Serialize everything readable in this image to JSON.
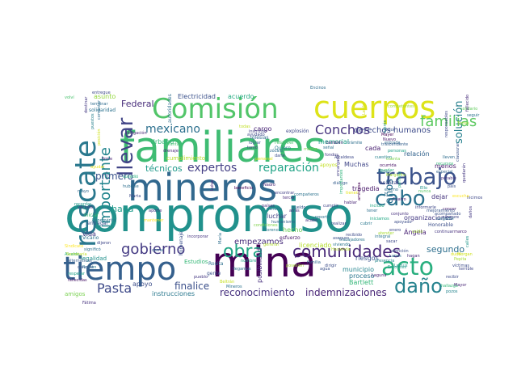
{
  "words": [
    {
      "text": "compromiso",
      "color": "#21918c"
    },
    {
      "text": "familiares",
      "color": "#3fbc73"
    },
    {
      "text": "mineros",
      "color": "#31688e"
    },
    {
      "text": "mina",
      "color": "#440154"
    },
    {
      "text": "tiempo",
      "color": "#35608d"
    },
    {
      "text": "cuerpos",
      "color": "#dde318"
    },
    {
      "text": "rescate",
      "color": "#2a788e"
    },
    {
      "text": "Comisión",
      "color": "#52c569"
    },
    {
      "text": "trabajo",
      "color": "#3b528b"
    },
    {
      "text": "acto",
      "color": "#29af7f"
    },
    {
      "text": "cabo",
      "color": "#2c728e"
    },
    {
      "text": "daño",
      "color": "#26828e"
    },
    {
      "text": "llevar",
      "color": "#414487"
    },
    {
      "text": "obra",
      "color": "#21a585"
    },
    {
      "text": "comunidades",
      "color": "#482878"
    },
    {
      "text": "gobierno",
      "color": "#443a83"
    },
    {
      "text": "Pasta",
      "color": "#3e4a89"
    },
    {
      "text": "importante",
      "color": "#24868e"
    },
    {
      "text": "Conchos",
      "color": "#46337e"
    },
    {
      "text": "mexicano",
      "color": "#2d708e"
    },
    {
      "text": "familias",
      "color": "#5ec962"
    },
    {
      "text": "solución",
      "color": "#27808e"
    },
    {
      "text": "expertos",
      "color": "#433e85"
    },
    {
      "text": "reparación",
      "color": "#20a386"
    },
    {
      "text": "técnicos",
      "color": "#1f998a"
    },
    {
      "text": "reconocimiento",
      "color": "#46307e"
    },
    {
      "text": "indemnizaciones",
      "color": "#482576"
    },
    {
      "text": "primero",
      "color": "#3a548c"
    },
    {
      "text": "Federal",
      "color": "#472c7a"
    },
    {
      "text": "segundo",
      "color": "#2e6f8e"
    },
    {
      "text": "derechos humanos",
      "color": "#3e4c8a"
    },
    {
      "text": "años",
      "color": "#2e6e8e"
    },
    {
      "text": "haga",
      "color": "#1e9b8a"
    },
    {
      "text": "finalice",
      "color": "#3c508b"
    },
    {
      "text": "empezamos",
      "color": "#472d7b"
    },
    {
      "text": "Electricidad",
      "color": "#3b518b"
    },
    {
      "text": "acuerdo",
      "color": "#25ab82"
    },
    {
      "text": "asunto",
      "color": "#95d840"
    },
    {
      "text": "Urbano",
      "color": "#35b779"
    },
    {
      "text": "Muchas",
      "color": "#404688"
    },
    {
      "text": "relación",
      "color": "#33638d"
    },
    {
      "text": "tragedia",
      "color": "#48186a"
    },
    {
      "text": "cargo",
      "color": "#482374"
    },
    {
      "text": "memorial",
      "color": "#1fa088"
    },
    {
      "text": "cada",
      "color": "#481f70"
    },
    {
      "text": "menos",
      "color": "#481b6d"
    },
    {
      "text": "dejar",
      "color": "#45337d"
    },
    {
      "text": "vida",
      "color": "#453882"
    },
    {
      "text": "hecho",
      "color": "#6ece58"
    },
    {
      "text": "licenciado",
      "color": "#b5de2b"
    },
    {
      "text": "riesgos",
      "color": "#3a538b"
    },
    {
      "text": "proceso",
      "color": "#2a768e"
    },
    {
      "text": "Bartlett",
      "color": "#35b779"
    },
    {
      "text": "instrucciones",
      "color": "#2a788e"
    },
    {
      "text": "organizaciones",
      "color": "#443983"
    },
    {
      "text": "Ángela",
      "color": "#482173"
    },
    {
      "text": "municipio",
      "color": "#25848e"
    },
    {
      "text": "apoyo",
      "color": "#3d4e8a"
    },
    {
      "text": "solidaridad",
      "color": "#2c718e"
    },
    {
      "text": "posibilidad",
      "color": "#472f7d"
    },
    {
      "text": "luchar",
      "color": "#424086"
    },
    {
      "text": "resolver",
      "color": "#4ac16d"
    },
    {
      "text": "explosión",
      "color": "#3f4889"
    },
    {
      "text": "Iglesias",
      "color": "#31688e"
    },
    {
      "text": "legalidad",
      "color": "#21918c"
    },
    {
      "text": "iniciar",
      "color": "#3dbc74"
    },
    {
      "text": "entregar",
      "color": "#39568c"
    },
    {
      "text": "amigos",
      "color": "#7ad151"
    },
    {
      "text": "Quiero",
      "color": "#287c8e"
    },
    {
      "text": "apoyos",
      "color": "#c2df23"
    },
    {
      "text": "Rosita",
      "color": "#2d708e"
    },
    {
      "text": "gente",
      "color": "#3b528b"
    },
    {
      "text": "volví",
      "color": "#4ac16d"
    },
    {
      "text": "entregue",
      "color": "#3e4989"
    },
    {
      "text": "Encinos",
      "color": "#2e6e8e"
    },
    {
      "text": "competentes",
      "color": "#a0da39"
    },
    {
      "text": "trascendente",
      "color": "#355f8d"
    },
    {
      "text": "homenaje",
      "color": "#3b518b"
    },
    {
      "text": "autoridades",
      "color": "#2e6f8e"
    },
    {
      "text": "cuestion",
      "color": "#26828e"
    },
    {
      "text": "cumplimiento",
      "color": "#b8de29"
    },
    {
      "text": "firme",
      "color": "#482173"
    },
    {
      "text": "tomó",
      "color": "#433e85"
    },
    {
      "text": "personal",
      "color": "#dde318"
    },
    {
      "text": "instruido",
      "color": "#424086"
    },
    {
      "text": "sucedió",
      "color": "#2ab07f"
    },
    {
      "text": "Nadro",
      "color": "#482475"
    },
    {
      "text": "diálogo",
      "color": "#355e8d"
    },
    {
      "text": "país",
      "color": "#3b528b"
    },
    {
      "text": "Fátima",
      "color": "#46327e"
    },
    {
      "text": "Vicario",
      "color": "#2c718e"
    },
    {
      "text": "Sindicato",
      "color": "#fde725"
    },
    {
      "text": "atrás",
      "color": "#472e7c"
    },
    {
      "text": "Alcalde",
      "color": "#26ad81"
    },
    {
      "text": "calles",
      "color": "#1f968b"
    },
    {
      "text": "Honorable",
      "color": "#3c4f8a"
    },
    {
      "text": "alternativas",
      "color": "#365d8d"
    },
    {
      "text": "Secretaría",
      "color": "#bddf26"
    },
    {
      "text": "fallecidas",
      "color": "#481769"
    },
    {
      "text": "víctimas",
      "color": "#3d4d8a"
    },
    {
      "text": "hallazgo",
      "color": "#35b779"
    },
    {
      "text": "pozos",
      "color": "#25848e"
    },
    {
      "text": "Morgan",
      "color": "#cde11d"
    },
    {
      "text": "recibir",
      "color": "#3e4a89"
    },
    {
      "text": "drenaje",
      "color": "#482878"
    },
    {
      "text": "planta",
      "color": "#44bf70"
    },
    {
      "text": "solidario",
      "color": "#63cb5f"
    },
    {
      "text": "lleven",
      "color": "#2e6d8e"
    },
    {
      "text": "esfuerzo",
      "color": "#48186a"
    },
    {
      "text": "iniciamos",
      "color": "#22a884"
    },
    {
      "text": "quedar",
      "color": "#2fb47c"
    },
    {
      "text": "cerrar",
      "color": "#31678e"
    },
    {
      "text": "condiciones",
      "color": "#81d34d"
    },
    {
      "text": "pueblo",
      "color": "#453882"
    },
    {
      "text": "Román",
      "color": "#287d8e"
    },
    {
      "text": "hicimos",
      "color": "#3e4989"
    },
    {
      "text": "Benemérita",
      "color": "#2a778e"
    },
    {
      "text": "concer",
      "color": "#481b6d"
    },
    {
      "text": "respetar",
      "color": "#1fa187"
    },
    {
      "text": "humanismo",
      "color": "#34618d"
    },
    {
      "text": "cumplir",
      "color": "#404588"
    },
    {
      "text": "ocurrida",
      "color": "#481467"
    },
    {
      "text": "analizar",
      "color": "#3e4a89"
    },
    {
      "text": "señal",
      "color": "#2d718e"
    },
    {
      "text": "también",
      "color": "#482576"
    },
    {
      "text": "mucho",
      "color": "#7fd34e"
    },
    {
      "text": "fondos",
      "color": "#433d84"
    },
    {
      "text": "zócalo",
      "color": "#2e6e8e"
    },
    {
      "text": "darle",
      "color": "#3d4d8a"
    },
    {
      "text": "lograr",
      "color": "#38588c"
    },
    {
      "text": "todas",
      "color": "#c0df25"
    },
    {
      "text": "ayudado",
      "color": "#3e4a89"
    },
    {
      "text": "especial",
      "color": "#33628d"
    },
    {
      "text": "agua",
      "color": "#3b528b"
    },
    {
      "text": "trámite",
      "color": "#2e6f8e"
    },
    {
      "text": "potable",
      "color": "#46327e"
    },
    {
      "text": "Estudios",
      "color": "#37b878"
    },
    {
      "text": "Beltrán",
      "color": "#c5e021"
    },
    {
      "text": "entrada",
      "color": "#31678e"
    },
    {
      "text": "personas",
      "color": "#1fa088"
    },
    {
      "text": "cuenta",
      "color": "#7ad151"
    },
    {
      "text": "aporte",
      "color": "#453781"
    },
    {
      "text": "dirigir",
      "color": "#3d4e8a"
    },
    {
      "text": "llegamos",
      "color": "#2d708e"
    },
    {
      "text": "posesión",
      "color": "#a8db34"
    },
    {
      "text": "recursos",
      "color": "#35b779"
    },
    {
      "text": "integral",
      "color": "#2b748e"
    },
    {
      "text": "marco",
      "color": "#482475"
    },
    {
      "text": "Ello",
      "color": "#21918c"
    },
    {
      "text": "obligación",
      "color": "#482777"
    },
    {
      "text": "hubiese",
      "color": "#2e6f8e"
    },
    {
      "text": "Marta",
      "color": "#3e4c8a"
    },
    {
      "text": "escucha",
      "color": "#fde725"
    },
    {
      "text": "dudo",
      "color": "#d8e219"
    },
    {
      "text": "dolor",
      "color": "#39568c"
    },
    {
      "text": "terminar",
      "color": "#2f6c8e"
    },
    {
      "text": "seguir",
      "color": "#2c738e"
    },
    {
      "text": "Hacienda",
      "color": "#b2dd2d"
    },
    {
      "text": "trabajadores",
      "color": "#2b758e"
    },
    {
      "text": "nunca",
      "color": "#5ac864"
    },
    {
      "text": "acabo",
      "color": "#46307e"
    },
    {
      "text": "destinar",
      "color": "#443983"
    },
    {
      "text": "puestos",
      "color": "#27808e"
    },
    {
      "text": "mayo",
      "color": "#31688e"
    },
    {
      "text": "ayudar",
      "color": "#e5e419"
    },
    {
      "text": "compañeros",
      "color": "#2c738e"
    },
    {
      "text": "siempre",
      "color": "#3f4788"
    },
    {
      "text": "interés",
      "color": "#21918c"
    },
    {
      "text": "minería",
      "color": "#2b758e"
    },
    {
      "text": "mejoramiento",
      "color": "#39568c"
    },
    {
      "text": "encontrar",
      "color": "#423f85"
    },
    {
      "text": "informarle",
      "color": "#3f4889"
    },
    {
      "text": "continuar",
      "color": "#453882"
    },
    {
      "text": "comentar",
      "color": "#2e6e8e"
    },
    {
      "text": "vecinos",
      "color": "#46327e"
    },
    {
      "text": "deben",
      "color": "#2a778e"
    },
    {
      "text": "Lunes",
      "color": "#2a788e"
    },
    {
      "text": "Mineros",
      "color": "#2c728e"
    },
    {
      "text": "Laguna",
      "color": "#482475"
    },
    {
      "text": "posición",
      "color": "#d0e11c"
    },
    {
      "text": "cargador",
      "color": "#2d708e"
    },
    {
      "text": "Alcaldesa",
      "color": "#3e4989"
    },
    {
      "text": "Nuevo",
      "color": "#48196b"
    },
    {
      "text": "terrible",
      "color": "#3f4788"
    },
    {
      "text": "tienen",
      "color": "#e7e419"
    },
    {
      "text": "Luisa",
      "color": "#482173"
    },
    {
      "text": "Entonces",
      "color": "#1e9c89"
    },
    {
      "text": "importantes",
      "color": "#2fb47c"
    },
    {
      "text": "encargado",
      "color": "#433d84"
    },
    {
      "text": "Lerdo",
      "color": "#d5e21a"
    },
    {
      "text": "permiso",
      "color": "#25ac82"
    },
    {
      "text": "familia",
      "color": "#31678e"
    },
    {
      "text": "tercer",
      "color": "#482878"
    },
    {
      "text": "beneficio",
      "color": "#440154"
    },
    {
      "text": "países",
      "color": "#46307e"
    },
    {
      "text": "apoyado",
      "color": "#3d4e8a"
    },
    {
      "text": "reportó",
      "color": "#2c718e"
    },
    {
      "text": "amistosa",
      "color": "#440154"
    },
    {
      "text": "realizar",
      "color": "#3f4889"
    },
    {
      "text": "hagan",
      "color": "#482979"
    },
    {
      "text": "Lemus",
      "color": "#1f998a"
    },
    {
      "text": "acompañado",
      "color": "#3b518b"
    },
    {
      "text": "María",
      "color": "#2e6f8e"
    },
    {
      "text": "responsables",
      "color": "#3e4989"
    },
    {
      "text": "Mayer",
      "color": "#440154"
    },
    {
      "text": "cubrir",
      "color": "#2a778e"
    },
    {
      "text": "caído",
      "color": "#a5db36"
    },
    {
      "text": "fallecido",
      "color": "#472d7b"
    },
    {
      "text": "atención",
      "color": "#3c4f8a"
    },
    {
      "text": "presencia",
      "color": "#24878e"
    },
    {
      "text": "aseguro",
      "color": "#3b528b"
    },
    {
      "text": "sueldo",
      "color": "#38588c"
    },
    {
      "text": "quedarán",
      "color": "#453882"
    },
    {
      "text": "incorporar",
      "color": "#463480"
    },
    {
      "text": "Moreno",
      "color": "#2a788e"
    },
    {
      "text": "clausurar",
      "color": "#3b528b"
    },
    {
      "text": "nombre",
      "color": "#20a386"
    },
    {
      "text": "Margarita",
      "color": "#a2da37"
    },
    {
      "text": "daños",
      "color": "#443a83"
    },
    {
      "text": "estimo",
      "color": "#2e6e8e"
    },
    {
      "text": "hablar",
      "color": "#482576"
    },
    {
      "text": "atender",
      "color": "#a8db34"
    },
    {
      "text": "recibido",
      "color": "#3e4a89"
    },
    {
      "text": "viviendo",
      "color": "#2b758e"
    },
    {
      "text": "conjunto",
      "color": "#46307e"
    },
    {
      "text": "Pepita",
      "color": "#a8db34"
    },
    {
      "text": "Cuatro",
      "color": "#482475"
    },
    {
      "text": "enero",
      "color": "#3e4989"
    },
    {
      "text": "dijeron",
      "color": "#3f4788"
    },
    {
      "text": "mantener",
      "color": "#fde725"
    },
    {
      "text": "recordar",
      "color": "#1f968b"
    },
    {
      "text": "significó",
      "color": "#2e6f8e"
    },
    {
      "text": "Torres",
      "color": "#a2da37"
    },
    {
      "text": "conocer",
      "color": "#3b528b"
    },
    {
      "text": "sacar",
      "color": "#3f4889"
    },
    {
      "text": "tener",
      "color": "#2d708e"
    },
    {
      "text": "Mayor",
      "color": "#482576"
    },
    {
      "text": "incluso",
      "color": "#22a884"
    },
    {
      "text": "general",
      "color": "#b2dd2d"
    }
  ]
}
